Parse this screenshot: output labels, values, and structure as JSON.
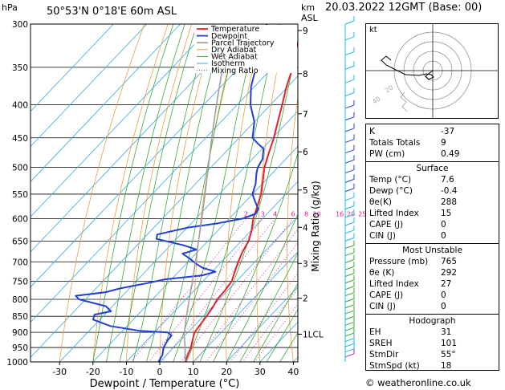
{
  "header": {
    "pressure_unit": "hPa",
    "station": "50°53'N  0°18'E  60m  ASL",
    "height_unit_line1": "km",
    "height_unit_line2": "ASL",
    "datetime": "20.03.2022  12GMT  (Base: 00)"
  },
  "chart_data": {
    "type": "line",
    "subtype": "skew-t log-p diagram",
    "xlabel": "Dewpoint / Temperature (°C)",
    "ylabel_right": "Mixing Ratio (g/kg)",
    "xlim": [
      -35,
      40
    ],
    "ylim": [
      1000,
      300
    ],
    "y_scale": "log",
    "pressure_ticks": [
      300,
      350,
      400,
      450,
      500,
      550,
      600,
      650,
      700,
      750,
      800,
      850,
      900,
      950,
      1000
    ],
    "temperature_ticks": [
      -30,
      -20,
      -10,
      0,
      10,
      20,
      30,
      40
    ],
    "km_ticks": [
      {
        "km": "9",
        "p": 307
      },
      {
        "km": "8",
        "p": 358
      },
      {
        "km": "7",
        "p": 413
      },
      {
        "km": "6",
        "p": 473
      },
      {
        "km": "5",
        "p": 542
      },
      {
        "km": "4",
        "p": 619
      },
      {
        "km": "3",
        "p": 704
      },
      {
        "km": "2",
        "p": 797
      },
      {
        "km": "1LCL",
        "p": 906
      }
    ],
    "mixing_ratio_labels": [
      "2",
      "3",
      "4",
      "6",
      "8",
      "10",
      "16",
      "20",
      "25"
    ],
    "legend": [
      "Temperature",
      "Dewpoint",
      "Parcel Trajectory",
      "Dry Adiabat",
      "Wet Adiabat",
      "Isotherm",
      "Mixing Ratio"
    ],
    "legend_placement": "top",
    "series": [
      {
        "name": "Temperature",
        "color": "#e8202a",
        "points": [
          [
            1000,
            7.6
          ],
          [
            975,
            6.4
          ],
          [
            950,
            5.2
          ],
          [
            925,
            3.6
          ],
          [
            900,
            2.0
          ],
          [
            880,
            1.6
          ],
          [
            850,
            1.0
          ],
          [
            825,
            0.4
          ],
          [
            800,
            -0.6
          ],
          [
            775,
            -0.8
          ],
          [
            750,
            -1.4
          ],
          [
            725,
            -3.2
          ],
          [
            700,
            -5.0
          ],
          [
            675,
            -6.6
          ],
          [
            650,
            -7.8
          ],
          [
            625,
            -10.0
          ],
          [
            600,
            -12.8
          ],
          [
            575,
            -15.0
          ],
          [
            550,
            -17.4
          ],
          [
            525,
            -20.6
          ],
          [
            500,
            -24.0
          ],
          [
            475,
            -26.8
          ],
          [
            450,
            -29.6
          ],
          [
            425,
            -33.0
          ],
          [
            400,
            -36.5
          ],
          [
            375,
            -40.4
          ],
          [
            350,
            -44.0
          ],
          [
            325,
            -48.8
          ],
          [
            300,
            -53.0
          ]
        ]
      },
      {
        "name": "Dewpoint",
        "color": "#1f3fd6",
        "points": [
          [
            1000,
            -0.4
          ],
          [
            975,
            -1.2
          ],
          [
            950,
            -3.0
          ],
          [
            925,
            -3.8
          ],
          [
            910,
            -4.0
          ],
          [
            900,
            -6.0
          ],
          [
            895,
            -15.0
          ],
          [
            880,
            -25.0
          ],
          [
            860,
            -32.0
          ],
          [
            845,
            -33.0
          ],
          [
            835,
            -29.0
          ],
          [
            820,
            -32.0
          ],
          [
            800,
            -42.0
          ],
          [
            790,
            -44.0
          ],
          [
            780,
            -36.0
          ],
          [
            770,
            -33.0
          ],
          [
            755,
            -26.0
          ],
          [
            745,
            -22.0
          ],
          [
            735,
            -12.0
          ],
          [
            725,
            -9.0
          ],
          [
            715,
            -14.0
          ],
          [
            705,
            -17.0
          ],
          [
            690,
            -21.0
          ],
          [
            680,
            -24.0
          ],
          [
            670,
            -21.0
          ],
          [
            660,
            -26.0
          ],
          [
            645,
            -36.0
          ],
          [
            635,
            -37.0
          ],
          [
            620,
            -30.0
          ],
          [
            610,
            -22.0
          ],
          [
            600,
            -16.0
          ],
          [
            590,
            -13.5
          ],
          [
            580,
            -14.0
          ],
          [
            565,
            -17.0
          ],
          [
            550,
            -20.0
          ],
          [
            530,
            -22.0
          ],
          [
            510,
            -24.8
          ],
          [
            500,
            -26.0
          ],
          [
            485,
            -27.0
          ],
          [
            475,
            -28.5
          ],
          [
            468,
            -29.5
          ],
          [
            460,
            -32.5
          ],
          [
            450,
            -36.0
          ],
          [
            425,
            -40.0
          ],
          [
            400,
            -46.0
          ],
          [
            375,
            -51.0
          ],
          [
            350,
            -55.0
          ],
          [
            325,
            -60.0
          ],
          [
            310,
            -63.0
          ],
          [
            300,
            -64.0
          ]
        ]
      },
      {
        "name": "Parcel Trajectory",
        "color": "#a0a0a0",
        "points": [
          [
            1000,
            7.6
          ],
          [
            950,
            3.5
          ],
          [
            906,
            -0.6
          ],
          [
            850,
            -5.0
          ],
          [
            800,
            -9.0
          ],
          [
            750,
            -13.2
          ],
          [
            700,
            -17.8
          ],
          [
            650,
            -22.8
          ],
          [
            600,
            -28.2
          ],
          [
            550,
            -34.2
          ],
          [
            500,
            -40.8
          ],
          [
            450,
            -48.2
          ],
          [
            400,
            -56.2
          ],
          [
            350,
            -65.0
          ],
          [
            300,
            -75.0
          ]
        ]
      }
    ]
  },
  "hodograph": {
    "label": "kt",
    "ring_labels": [
      "20",
      "40"
    ]
  },
  "indices": [
    {
      "label": "K",
      "value": "-37"
    },
    {
      "label": "Totals Totals",
      "value": "9"
    },
    {
      "label": "PW (cm)",
      "value": "0.49"
    }
  ],
  "surface": {
    "title": "Surface",
    "rows": [
      {
        "label": "Temp (°C)",
        "value": "7.6"
      },
      {
        "label": "Dewp (°C)",
        "value": "-0.4"
      },
      {
        "label": "θe(K)",
        "value": "288"
      },
      {
        "label": "Lifted Index",
        "value": "15"
      },
      {
        "label": "CAPE (J)",
        "value": "0"
      },
      {
        "label": "CIN (J)",
        "value": "0"
      }
    ]
  },
  "most_unstable": {
    "title": "Most Unstable",
    "rows": [
      {
        "label": "Pressure (mb)",
        "value": "765"
      },
      {
        "label": "θe (K)",
        "value": "292"
      },
      {
        "label": "Lifted Index",
        "value": "27"
      },
      {
        "label": "CAPE (J)",
        "value": "0"
      },
      {
        "label": "CIN (J)",
        "value": "0"
      }
    ]
  },
  "hodograph_table": {
    "title": "Hodograph",
    "rows": [
      {
        "label": "EH",
        "value": "31"
      },
      {
        "label": "SREH",
        "value": "101"
      },
      {
        "label": "StmDir",
        "value": "55°"
      },
      {
        "label": "StmSpd (kt)",
        "value": "18"
      }
    ]
  },
  "credit": "© weatheronline.co.uk",
  "colors": {
    "temperature": "#e8202a",
    "dewpoint": "#1f3fd6",
    "parcel": "#a0a0a0",
    "dry_adiabat": "#e8a040",
    "wet_adiabat": "#3aa83a",
    "isotherm": "#38a8e0",
    "mixing_ratio": "#d0209a"
  }
}
